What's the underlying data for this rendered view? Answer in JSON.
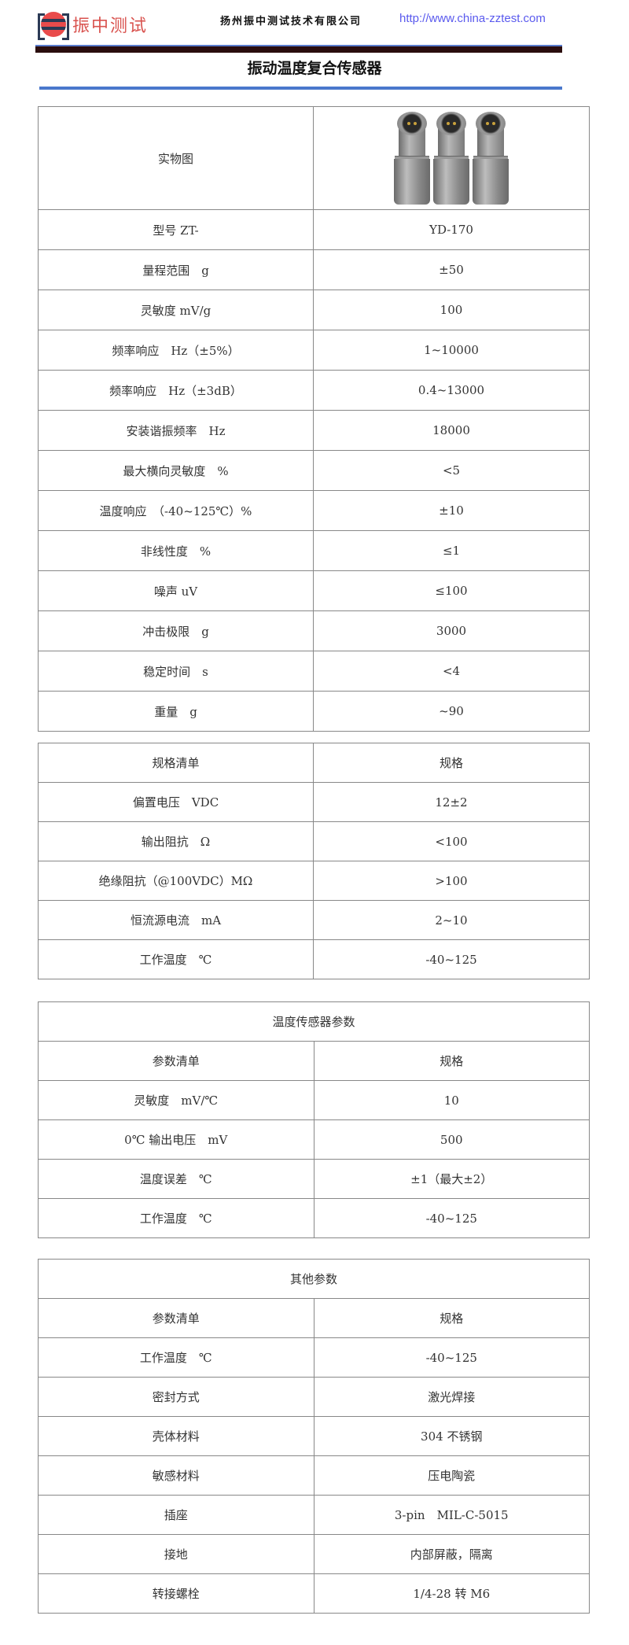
{
  "header": {
    "logo_text": "振中测试",
    "company": "扬州振中测试技术有限公司",
    "url": "http://www.china-zztest.com",
    "title": "振动温度复合传感器"
  },
  "colors": {
    "accent_blue": "#4a78cc",
    "dark_bar": "#2a0d0d",
    "logo_red": "#e94b4b",
    "url_blue": "#5a5aee"
  },
  "table1": {
    "image_label": "实物图",
    "image_icon": "sensor-photo",
    "rows": [
      [
        "型号 ZT-",
        "YD-170"
      ],
      [
        "量程范围　g",
        "±50"
      ],
      [
        "灵敏度 mV/g",
        "100"
      ],
      [
        "频率响应　Hz（±5%）",
        "1~10000"
      ],
      [
        "频率响应　Hz（±3dB）",
        "0.4~13000"
      ],
      [
        "安装谐振频率　Hz",
        "18000"
      ],
      [
        "最大横向灵敏度　%",
        "<5"
      ],
      [
        "温度响应　（-40~125℃）%",
        "±10"
      ],
      [
        "非线性度　%",
        "≤1"
      ],
      [
        "噪声 uV",
        "≤100"
      ],
      [
        "冲击极限　g",
        "3000"
      ],
      [
        "稳定时间　s",
        "<4"
      ],
      [
        "重量　g",
        "~90"
      ]
    ]
  },
  "table2": {
    "title": "",
    "rows": [
      [
        "规格清单",
        "规格"
      ],
      [
        "偏置电压　VDC",
        "12±2"
      ],
      [
        "输出阻抗　Ω",
        "<100"
      ],
      [
        "绝缘阻抗（@100VDC）MΩ",
        ">100"
      ],
      [
        "恒流源电流　mA",
        "2~10"
      ],
      [
        "工作温度　℃",
        "-40~125"
      ]
    ]
  },
  "table3": {
    "title": "温度传感器参数",
    "rows": [
      [
        "参数清单",
        "规格"
      ],
      [
        "灵敏度　mV/℃",
        "10"
      ],
      [
        "0℃ 输出电压　mV",
        "500"
      ],
      [
        "温度误差　℃",
        "±1（最大±2）"
      ],
      [
        "工作温度　℃",
        "-40~125"
      ]
    ]
  },
  "table4": {
    "title": "其他参数",
    "rows": [
      [
        "参数清单",
        "规格"
      ],
      [
        "工作温度　℃",
        "-40~125"
      ],
      [
        "密封方式",
        "激光焊接"
      ],
      [
        "壳体材料",
        "304 不锈钢"
      ],
      [
        "敏感材料",
        "压电陶瓷"
      ],
      [
        "插座",
        "3-pin　MIL-C-5015"
      ],
      [
        "接地",
        "内部屏蔽，隔离"
      ],
      [
        "转接螺栓",
        "1/4-28 转 M6"
      ]
    ]
  }
}
